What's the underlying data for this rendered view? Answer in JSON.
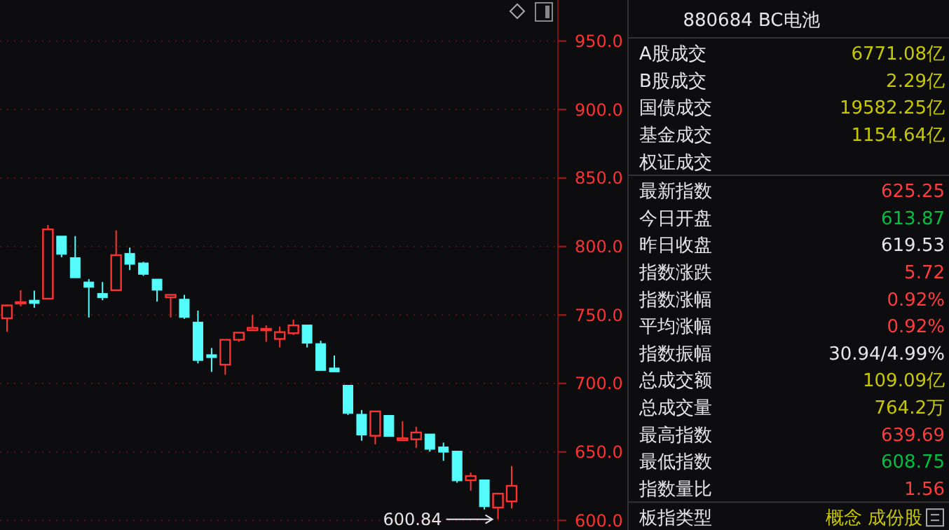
{
  "chart_data": [
    {
      "type": "candlestick",
      "categories": [
        null,
        null,
        null,
        null,
        null,
        null,
        null,
        null,
        null,
        null,
        null,
        null,
        null,
        null,
        null,
        null,
        null,
        null,
        null,
        null,
        null,
        null,
        null,
        null,
        null,
        null,
        null,
        null,
        null,
        null,
        null,
        null,
        null,
        null,
        null,
        null,
        null,
        null
      ],
      "ohlc": [
        [
          747.6,
          757.5,
          737.8,
          757.0
        ],
        [
          758.4,
          768.1,
          756.3,
          759.4
        ],
        [
          760.8,
          767.8,
          755.3,
          758.4
        ],
        [
          761.9,
          815.7,
          761.5,
          812.5
        ],
        [
          807.6,
          807.6,
          792.2,
          794.3
        ],
        [
          791.9,
          807.6,
          777.2,
          777.2
        ],
        [
          774.1,
          776.2,
          748.2,
          770.2
        ],
        [
          765.7,
          774.1,
          760.8,
          762.6
        ],
        [
          768.1,
          811.8,
          768.1,
          793.7
        ],
        [
          795.0,
          799.2,
          782.8,
          787.0
        ],
        [
          788.0,
          788.8,
          778.6,
          779.7
        ],
        [
          776.2,
          776.2,
          759.8,
          768.1
        ],
        [
          762.9,
          764.7,
          748.2,
          764.7
        ],
        [
          761.5,
          764.7,
          747.2,
          748.2
        ],
        [
          744.8,
          753.2,
          714.7,
          716.8
        ],
        [
          721.0,
          725.9,
          708.5,
          718.9
        ],
        [
          713.7,
          731.9,
          706.4,
          731.9
        ],
        [
          731.9,
          737.1,
          730.4,
          737.1
        ],
        [
          738.8,
          750.0,
          738.8,
          740.6
        ],
        [
          738.8,
          742.4,
          730.4,
          739.9
        ],
        [
          732.5,
          741.6,
          726.3,
          737.5
        ],
        [
          736.7,
          746.6,
          735.4,
          742.4
        ],
        [
          742.7,
          742.7,
          726.3,
          729.4
        ],
        [
          729.1,
          731.2,
          709.5,
          709.5
        ],
        [
          711.3,
          720.4,
          708.5,
          708.5
        ],
        [
          698.7,
          698.7,
          677.0,
          678.1
        ],
        [
          677.5,
          680.6,
          658.2,
          662.4
        ],
        [
          661.8,
          679.6,
          655.5,
          679.6
        ],
        [
          676.7,
          676.7,
          661.3,
          661.3
        ],
        [
          658.6,
          672.5,
          658.6,
          660.0
        ],
        [
          659.2,
          668.4,
          653.0,
          664.2
        ],
        [
          663.1,
          663.1,
          650.2,
          651.9
        ],
        [
          653.7,
          656.8,
          643.5,
          649.8
        ],
        [
          650.6,
          650.6,
          627.5,
          628.9
        ],
        [
          629.3,
          634.9,
          621.6,
          632.4
        ],
        [
          629.6,
          629.6,
          608.0,
          610.0
        ],
        [
          609.4,
          620.2,
          600.84,
          619.53
        ],
        [
          613.87,
          639.69,
          608.75,
          625.25
        ]
      ],
      "colors": [
        "#ff3232",
        "#ff3232",
        "#54fcfc",
        "#ff3232",
        "#54fcfc",
        "#54fcfc",
        "#54fcfc",
        "#54fcfc",
        "#ff3232",
        "#54fcfc",
        "#54fcfc",
        "#54fcfc",
        "#ff3232",
        "#54fcfc",
        "#54fcfc",
        "#54fcfc",
        "#ff3232",
        "#ff3232",
        "#ff3232",
        "#ff3232",
        "#ff3232",
        "#ff3232",
        "#54fcfc",
        "#54fcfc",
        "#54fcfc",
        "#54fcfc",
        "#54fcfc",
        "#ff3232",
        "#54fcfc",
        "#ff3232",
        "#ff3232",
        "#54fcfc",
        "#54fcfc",
        "#54fcfc",
        "#ff3232",
        "#54fcfc",
        "#ff3232",
        "#ff3232"
      ],
      "ylim": [
        593,
        980
      ],
      "yticks": [
        {
          "value": 600,
          "label": "600.0"
        },
        {
          "value": 650,
          "label": "650.0"
        },
        {
          "value": 700,
          "label": "700.0"
        },
        {
          "value": 750,
          "label": "750.0"
        },
        {
          "value": 800,
          "label": "800.0"
        },
        {
          "value": 850,
          "label": "850.0"
        },
        {
          "value": 900,
          "label": "900.0"
        },
        {
          "value": 950,
          "label": "950.0"
        }
      ],
      "grid": "y",
      "tick_labels": "y",
      "annotations": [
        "600.84"
      ]
    },
    {
      "type": "other",
      "title": "880684 BC电池",
      "categories": [
        "A股成交",
        "B股成交",
        "国债成交",
        "基金成交",
        "权证成交",
        "最新指数",
        "今日开盘",
        "昨日收盘",
        "指数涨跌",
        "指数涨幅",
        "平均涨幅",
        "指数振幅",
        "总成交额",
        "总成交量",
        "最高指数",
        "最低指数",
        "指数量比",
        "板指类型"
      ],
      "value_labels": [
        "6771.08亿",
        "2.29亿",
        "19582.25亿",
        "1154.64亿",
        null,
        "625.25",
        "613.87",
        "619.53",
        "5.72",
        "0.92%",
        "0.92%",
        "30.94/4.99%",
        "109.09亿",
        "764.2万",
        "639.69",
        "608.75",
        "1.56",
        "概念 成份股"
      ],
      "colors": [
        "#c8c800",
        "#c8c800",
        "#c8c800",
        "#c8c800",
        null,
        "#ff3c3c",
        "#00c040",
        "#e6e6e6",
        "#ff3c3c",
        "#ff3c3c",
        "#ff3c3c",
        "#e6e6e6",
        "#c8c800",
        "#c8c800",
        "#ff3c3c",
        "#00c040",
        "#ff3c3c",
        "#c8c800"
      ]
    }
  ]
}
